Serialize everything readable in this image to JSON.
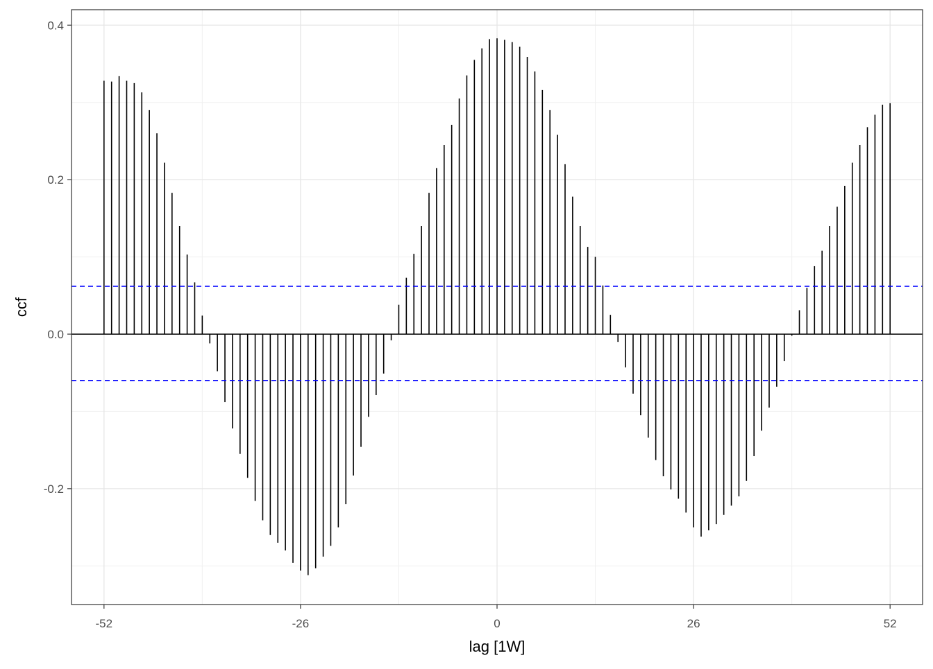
{
  "chart_data": {
    "type": "bar",
    "xlabel": "lag [1W]",
    "ylabel": "ccf",
    "xlim": [
      -56.3,
      56.3
    ],
    "ylim": [
      -0.35,
      0.42
    ],
    "x_ticks": [
      -52,
      -26,
      0,
      26,
      52
    ],
    "x_tick_labels": [
      "-52",
      "-26",
      "0",
      "26",
      "52"
    ],
    "y_ticks": [
      -0.2,
      0.0,
      0.2,
      0.4
    ],
    "y_tick_labels": [
      "-0.2",
      "0.0",
      "0.2",
      "0.4"
    ],
    "grid": true,
    "significance_bounds": [
      0.062,
      -0.06
    ],
    "lags": [
      -52,
      -51,
      -50,
      -49,
      -48,
      -47,
      -46,
      -45,
      -44,
      -43,
      -42,
      -41,
      -40,
      -39,
      -38,
      -37,
      -36,
      -35,
      -34,
      -33,
      -32,
      -31,
      -30,
      -29,
      -28,
      -27,
      -26,
      -25,
      -24,
      -23,
      -22,
      -21,
      -20,
      -19,
      -18,
      -17,
      -16,
      -15,
      -14,
      -13,
      -12,
      -11,
      -10,
      -9,
      -8,
      -7,
      -6,
      -5,
      -4,
      -3,
      -2,
      -1,
      0,
      1,
      2,
      3,
      4,
      5,
      6,
      7,
      8,
      9,
      10,
      11,
      12,
      13,
      14,
      15,
      16,
      17,
      18,
      19,
      20,
      21,
      22,
      23,
      24,
      25,
      26,
      27,
      28,
      29,
      30,
      31,
      32,
      33,
      34,
      35,
      36,
      37,
      38,
      39,
      40,
      41,
      42,
      43,
      44,
      45,
      46,
      47,
      48,
      49,
      50,
      51,
      52
    ],
    "values": [
      0.328,
      0.327,
      0.334,
      0.328,
      0.325,
      0.313,
      0.29,
      0.26,
      0.222,
      0.183,
      0.14,
      0.103,
      0.067,
      0.024,
      -0.012,
      -0.048,
      -0.088,
      -0.122,
      -0.155,
      -0.186,
      -0.216,
      -0.241,
      -0.26,
      -0.27,
      -0.28,
      -0.296,
      -0.306,
      -0.312,
      -0.303,
      -0.288,
      -0.274,
      -0.25,
      -0.22,
      -0.183,
      -0.146,
      -0.107,
      -0.079,
      -0.051,
      -0.008,
      0.038,
      0.073,
      0.104,
      0.14,
      0.183,
      0.215,
      0.245,
      0.271,
      0.305,
      0.335,
      0.355,
      0.37,
      0.382,
      0.383,
      0.381,
      0.378,
      0.372,
      0.359,
      0.34,
      0.316,
      0.29,
      0.258,
      0.22,
      0.178,
      0.14,
      0.113,
      0.1,
      0.063,
      0.025,
      -0.01,
      -0.043,
      -0.077,
      -0.105,
      -0.134,
      -0.163,
      -0.184,
      -0.201,
      -0.213,
      -0.231,
      -0.25,
      -0.262,
      -0.254,
      -0.246,
      -0.234,
      -0.222,
      -0.21,
      -0.19,
      -0.158,
      -0.125,
      -0.095,
      -0.068,
      -0.035,
      -0.002,
      0.031,
      0.06,
      0.088,
      0.108,
      0.14,
      0.165,
      0.192,
      0.222,
      0.245,
      0.268,
      0.284,
      0.297,
      0.299
    ]
  }
}
